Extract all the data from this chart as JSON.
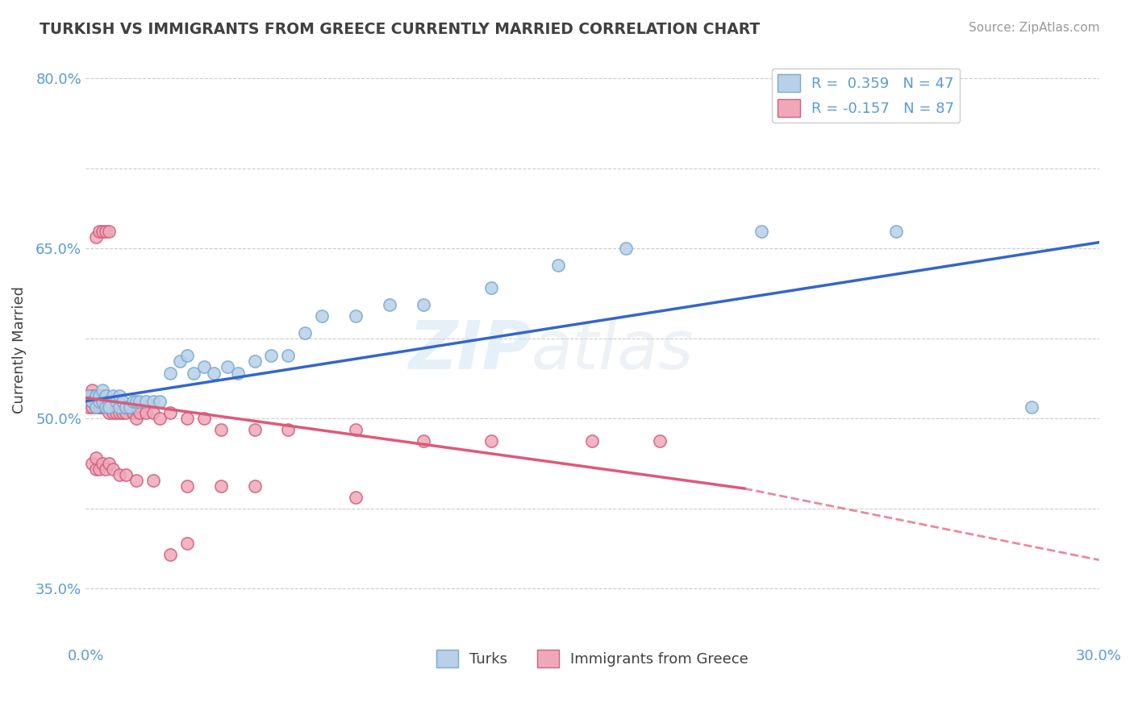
{
  "title": "TURKISH VS IMMIGRANTS FROM GREECE CURRENTLY MARRIED CORRELATION CHART",
  "source": "Source: ZipAtlas.com",
  "xlabel": "",
  "ylabel": "Currently Married",
  "xlim": [
    0.0,
    0.3
  ],
  "ylim": [
    0.3,
    0.82
  ],
  "xticks": [
    0.0,
    0.3
  ],
  "xtick_labels": [
    "0.0%",
    "30.0%"
  ],
  "ytick_labels": [
    "",
    "35.0%",
    "",
    "50.0%",
    "",
    "65.0%",
    "",
    "80.0%"
  ],
  "ytick_positions": [
    0.3,
    0.35,
    0.42,
    0.5,
    0.57,
    0.65,
    0.72,
    0.8
  ],
  "legend_entries": [
    {
      "label": "R =  0.359   N = 47",
      "color": "#b8d0e8"
    },
    {
      "label": "R = -0.157   N = 87",
      "color": "#f0a8b8"
    }
  ],
  "legend_labels_bottom": [
    "Turks",
    "Immigrants from Greece"
  ],
  "turks_color": "#b8d0e8",
  "turks_edge": "#7aaad0",
  "greece_color": "#f0a8b8",
  "greece_edge": "#d06080",
  "trend_turks_color": "#3366cc",
  "trend_greece_color": "#e05878",
  "watermark_zip": "ZIP",
  "watermark_atlas": "atlas",
  "turks_x": [
    0.001,
    0.002,
    0.003,
    0.003,
    0.004,
    0.004,
    0.005,
    0.005,
    0.006,
    0.006,
    0.007,
    0.007,
    0.008,
    0.009,
    0.01,
    0.01,
    0.011,
    0.012,
    0.013,
    0.014,
    0.015,
    0.016,
    0.018,
    0.02,
    0.022,
    0.025,
    0.028,
    0.03,
    0.032,
    0.035,
    0.038,
    0.042,
    0.045,
    0.05,
    0.055,
    0.06,
    0.065,
    0.07,
    0.08,
    0.09,
    0.1,
    0.12,
    0.14,
    0.16,
    0.2,
    0.24,
    0.28
  ],
  "turks_y": [
    0.52,
    0.515,
    0.52,
    0.51,
    0.515,
    0.52,
    0.515,
    0.525,
    0.51,
    0.52,
    0.515,
    0.51,
    0.52,
    0.515,
    0.51,
    0.52,
    0.515,
    0.51,
    0.51,
    0.515,
    0.515,
    0.515,
    0.515,
    0.515,
    0.515,
    0.54,
    0.55,
    0.555,
    0.54,
    0.545,
    0.54,
    0.545,
    0.54,
    0.55,
    0.555,
    0.555,
    0.575,
    0.59,
    0.59,
    0.6,
    0.6,
    0.615,
    0.635,
    0.65,
    0.665,
    0.665,
    0.51
  ],
  "greece_x": [
    0.001,
    0.001,
    0.002,
    0.002,
    0.002,
    0.002,
    0.003,
    0.003,
    0.003,
    0.003,
    0.003,
    0.004,
    0.004,
    0.004,
    0.004,
    0.004,
    0.004,
    0.005,
    0.005,
    0.005,
    0.005,
    0.005,
    0.005,
    0.005,
    0.006,
    0.006,
    0.006,
    0.006,
    0.006,
    0.007,
    0.007,
    0.007,
    0.007,
    0.008,
    0.008,
    0.008,
    0.009,
    0.009,
    0.01,
    0.01,
    0.01,
    0.011,
    0.011,
    0.012,
    0.012,
    0.013,
    0.014,
    0.015,
    0.015,
    0.016,
    0.018,
    0.02,
    0.022,
    0.025,
    0.03,
    0.035,
    0.04,
    0.05,
    0.06,
    0.08,
    0.1,
    0.12,
    0.15,
    0.17,
    0.003,
    0.004,
    0.005,
    0.006,
    0.007,
    0.002,
    0.003,
    0.003,
    0.004,
    0.005,
    0.006,
    0.007,
    0.008,
    0.01,
    0.012,
    0.015,
    0.02,
    0.03,
    0.04,
    0.05,
    0.08,
    0.025,
    0.03
  ],
  "greece_y": [
    0.52,
    0.51,
    0.525,
    0.51,
    0.515,
    0.52,
    0.515,
    0.51,
    0.52,
    0.515,
    0.52,
    0.51,
    0.515,
    0.51,
    0.52,
    0.515,
    0.51,
    0.51,
    0.515,
    0.51,
    0.515,
    0.515,
    0.52,
    0.51,
    0.51,
    0.515,
    0.51,
    0.515,
    0.51,
    0.51,
    0.515,
    0.51,
    0.505,
    0.51,
    0.505,
    0.51,
    0.51,
    0.505,
    0.51,
    0.51,
    0.505,
    0.51,
    0.505,
    0.505,
    0.51,
    0.51,
    0.505,
    0.51,
    0.5,
    0.505,
    0.505,
    0.505,
    0.5,
    0.505,
    0.5,
    0.5,
    0.49,
    0.49,
    0.49,
    0.49,
    0.48,
    0.48,
    0.48,
    0.48,
    0.66,
    0.665,
    0.665,
    0.665,
    0.665,
    0.46,
    0.455,
    0.465,
    0.455,
    0.46,
    0.455,
    0.46,
    0.455,
    0.45,
    0.45,
    0.445,
    0.445,
    0.44,
    0.44,
    0.44,
    0.43,
    0.38,
    0.39
  ]
}
